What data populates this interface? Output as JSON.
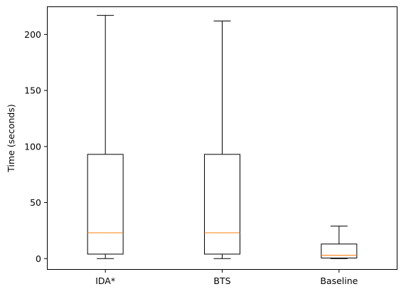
{
  "chart_data": {
    "type": "box",
    "xlabel": "",
    "ylabel": "Time (seconds)",
    "ylim": [
      -10,
      225
    ],
    "yticks": [
      0,
      50,
      100,
      150,
      200
    ],
    "grid": false,
    "categories": [
      "IDA*",
      "BTS",
      "Baseline"
    ],
    "boxes": [
      {
        "category": "IDA*",
        "whisker_low": 0,
        "q1": 4,
        "median": 23,
        "q3": 93,
        "whisker_high": 217
      },
      {
        "category": "BTS",
        "whisker_low": 0,
        "q1": 4,
        "median": 23,
        "q3": 93,
        "whisker_high": 212
      },
      {
        "category": "Baseline",
        "whisker_low": 0,
        "q1": 0.5,
        "median": 3,
        "q3": 13,
        "whisker_high": 29
      }
    ],
    "colors": {
      "box": "#000000",
      "median": "#ff7f0e",
      "axes": "#000000"
    }
  }
}
